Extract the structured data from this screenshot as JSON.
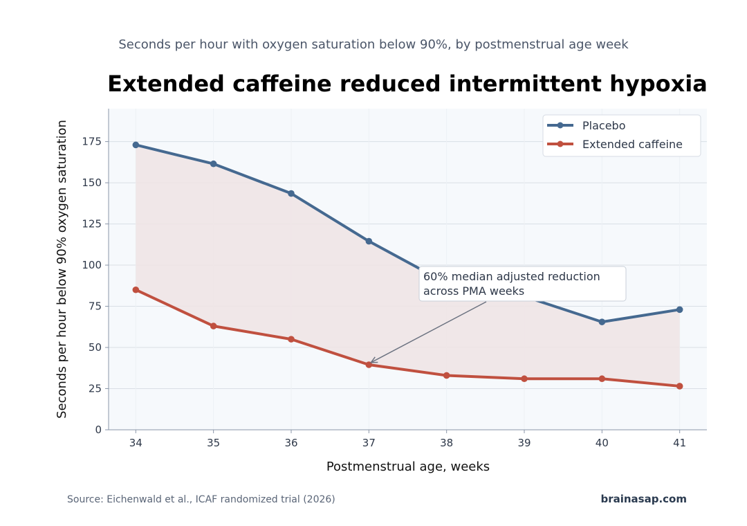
{
  "chart_data": {
    "type": "line",
    "title": "Extended caffeine reduced intermittent hypoxia",
    "subtitle": "Seconds per hour with oxygen saturation below 90%, by postmenstrual age week",
    "xlabel": "Postmenstrual age, weeks",
    "ylabel": "Seconds per hour below 90% oxygen saturation",
    "x": [
      34,
      35,
      36,
      37,
      38,
      39,
      40,
      41
    ],
    "x_ticks": [
      "34",
      "35",
      "36",
      "37",
      "38",
      "39",
      "40",
      "41"
    ],
    "xlim": [
      33.65,
      41.35
    ],
    "ylim": [
      0,
      195
    ],
    "y_ticks": [
      0,
      25,
      50,
      75,
      100,
      125,
      150,
      175
    ],
    "grid": true,
    "legend_position": "top-right",
    "series": [
      {
        "name": "Placebo",
        "color": "#456990",
        "values": [
          173,
          161.5,
          143.5,
          114.5,
          89,
          81,
          65.5,
          73
        ]
      },
      {
        "name": "Extended caffeine",
        "color": "#c0503f",
        "values": [
          85,
          63,
          55,
          39.5,
          33,
          31,
          31,
          26.5
        ]
      }
    ],
    "shaded_between_series": true,
    "shade_color": "#efe4e4",
    "annotation": {
      "lines": [
        "60% median adjusted reduction",
        "across PMA weeks"
      ],
      "points_to": {
        "x": 37,
        "y": 40
      }
    }
  },
  "footer": {
    "source": "Source: Eichenwald et al., ICAF randomized trial (2026)",
    "brand": "brainasap.com"
  },
  "colors": {
    "plot_background": "#f6f9fc",
    "grid": "#d9dee5",
    "axis": "#8a96a8"
  }
}
